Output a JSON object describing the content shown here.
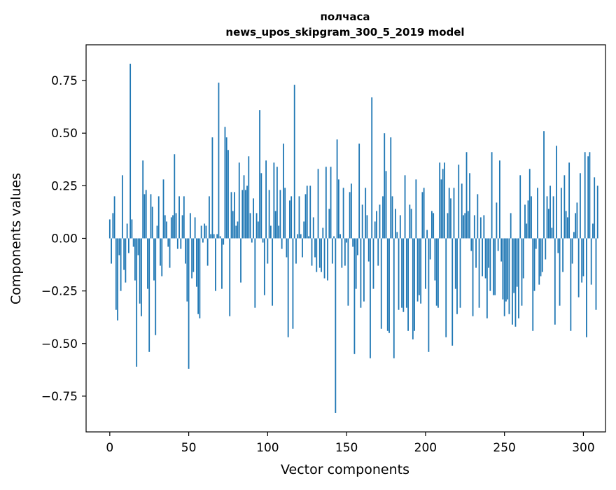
{
  "chart_data": {
    "type": "bar",
    "title_line1": "полчаса",
    "title_line2": "news_upos_skipgram_300_5_2019 model",
    "xlabel": "Vector components",
    "ylabel": "Components values",
    "xlim": [
      -15,
      314
    ],
    "ylim": [
      -0.92,
      0.92
    ],
    "xticks": [
      0,
      50,
      100,
      150,
      200,
      250,
      300
    ],
    "xtick_labels": [
      "0",
      "50",
      "100",
      "150",
      "200",
      "250",
      "300"
    ],
    "yticks": [
      -0.75,
      -0.5,
      -0.25,
      0.0,
      0.25,
      0.5,
      0.75
    ],
    "ytick_labels": [
      "−0.75",
      "−0.50",
      "−0.25",
      "0.00",
      "0.25",
      "0.50",
      "0.75"
    ],
    "bar_color": "#1f77b4",
    "values": [
      0.09,
      -0.12,
      0.12,
      0.2,
      -0.34,
      -0.39,
      -0.08,
      -0.25,
      0.3,
      -0.15,
      -0.21,
      0.07,
      -0.07,
      0.83,
      0.09,
      -0.04,
      -0.2,
      -0.61,
      -0.08,
      -0.31,
      -0.37,
      0.37,
      0.21,
      0.23,
      -0.24,
      -0.54,
      0.21,
      0.15,
      -0.2,
      -0.46,
      0.06,
      0.2,
      -0.13,
      -0.18,
      0.28,
      0.11,
      0.08,
      -0.04,
      -0.14,
      0.1,
      0.11,
      0.4,
      0.12,
      -0.05,
      0.2,
      -0.05,
      0.11,
      0.2,
      -0.12,
      -0.3,
      -0.62,
      0.12,
      -0.19,
      -0.16,
      0.1,
      -0.23,
      -0.36,
      -0.38,
      0.06,
      -0.02,
      0.07,
      0.06,
      -0.13,
      0.2,
      0.02,
      0.48,
      0.02,
      -0.25,
      0.02,
      0.74,
      0.01,
      -0.24,
      -0.03,
      0.53,
      0.48,
      0.42,
      -0.37,
      0.22,
      0.13,
      0.22,
      0.06,
      0.08,
      0.36,
      -0.21,
      0.23,
      0.3,
      0.23,
      0.25,
      0.39,
      0.12,
      -0.02,
      0.19,
      -0.33,
      0.12,
      0.08,
      0.61,
      0.31,
      -0.02,
      -0.27,
      0.37,
      -0.12,
      0.23,
      0.06,
      -0.32,
      0.36,
      0.13,
      0.34,
      0.06,
      0.23,
      -0.05,
      0.45,
      0.24,
      -0.09,
      -0.47,
      0.18,
      0.2,
      -0.43,
      0.73,
      -0.12,
      0.02,
      0.2,
      0.02,
      -0.09,
      0.08,
      0.21,
      0.25,
      0.01,
      0.25,
      -0.13,
      0.1,
      -0.09,
      -0.16,
      0.33,
      -0.14,
      -0.16,
      0.05,
      -0.19,
      0.34,
      -0.2,
      0.14,
      0.34,
      -0.12,
      0.01,
      -0.83,
      0.47,
      0.28,
      0.02,
      -0.14,
      0.24,
      -0.13,
      -0.02,
      -0.32,
      0.22,
      0.26,
      -0.04,
      -0.55,
      -0.24,
      -0.08,
      0.45,
      -0.33,
      0.16,
      -0.3,
      0.24,
      0.11,
      -0.11,
      -0.57,
      0.67,
      -0.24,
      0.08,
      0.13,
      -0.13,
      0.16,
      -0.43,
      0.2,
      0.5,
      0.32,
      -0.44,
      -0.45,
      0.48,
      0.2,
      -0.57,
      0.14,
      0.03,
      -0.34,
      0.11,
      -0.33,
      -0.35,
      0.3,
      -0.33,
      -0.44,
      0.16,
      0.14,
      -0.48,
      -0.44,
      0.28,
      -0.3,
      -0.27,
      -0.31,
      0.22,
      0.24,
      -0.24,
      0.04,
      -0.54,
      -0.1,
      0.13,
      0.12,
      -0.2,
      -0.32,
      -0.33,
      0.36,
      0.28,
      0.33,
      0.36,
      -0.47,
      0.12,
      0.24,
      0.19,
      -0.51,
      0.24,
      -0.24,
      -0.36,
      0.35,
      -0.33,
      0.26,
      0.11,
      0.12,
      0.41,
      0.13,
      0.31,
      -0.06,
      -0.37,
      0.11,
      -0.14,
      0.21,
      -0.33,
      0.1,
      -0.18,
      0.11,
      -0.19,
      -0.38,
      -0.14,
      -0.25,
      0.41,
      -0.27,
      -0.27,
      0.17,
      -0.06,
      0.37,
      -0.11,
      -0.29,
      -0.37,
      -0.3,
      -0.29,
      -0.36,
      0.12,
      -0.41,
      -0.26,
      -0.42,
      -0.23,
      -0.38,
      0.3,
      -0.32,
      -0.19,
      0.16,
      0.07,
      0.18,
      0.33,
      0.2,
      -0.44,
      -0.25,
      -0.05,
      0.24,
      -0.22,
      -0.18,
      -0.16,
      0.51,
      -0.1,
      0.2,
      0.14,
      0.25,
      0.05,
      0.2,
      -0.41,
      0.44,
      -0.07,
      -0.32,
      0.24,
      -0.16,
      0.3,
      0.13,
      0.1,
      0.36,
      -0.44,
      -0.12,
      0.03,
      0.12,
      0.17,
      -0.28,
      0.31,
      -0.21,
      -0.18,
      0.41,
      -0.47,
      0.39,
      0.41,
      -0.22,
      0.07,
      0.29,
      -0.34,
      0.25
    ]
  }
}
